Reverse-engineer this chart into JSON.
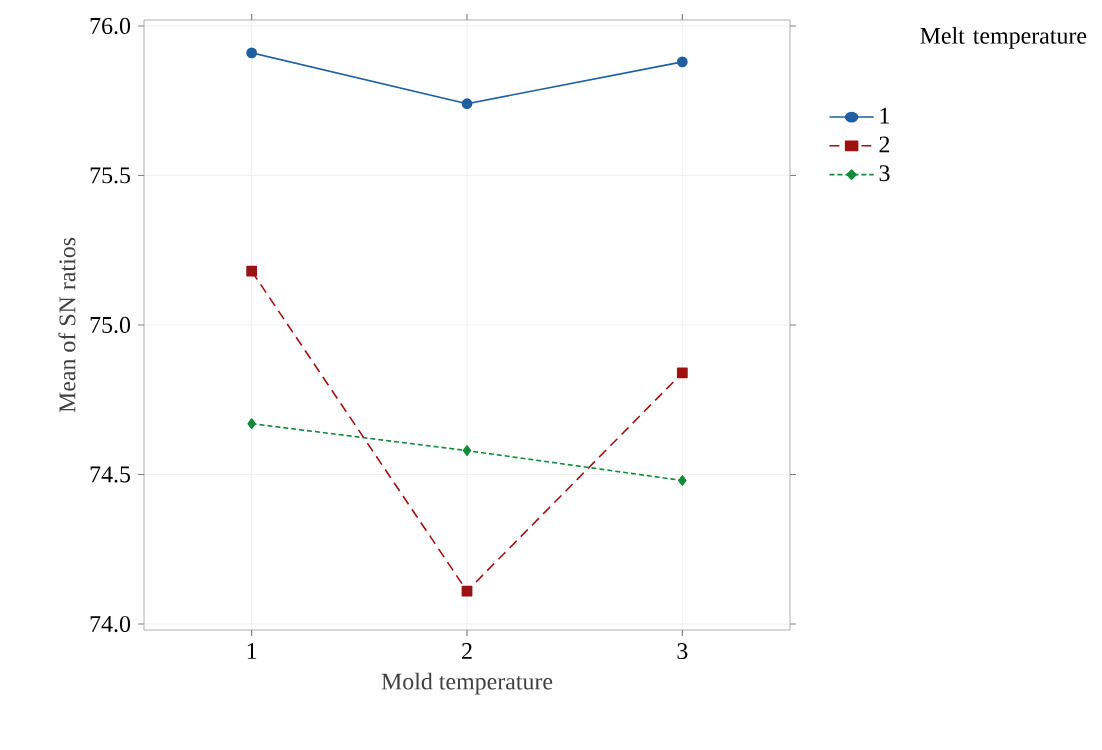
{
  "chart_data": {
    "type": "line",
    "xlabel": "Mold temperature",
    "ylabel": "Mean of SN ratios",
    "legend_title": "Melt temperature",
    "categories": [
      "1",
      "2",
      "3"
    ],
    "series": [
      {
        "name": "1",
        "color": "#1f5fa0",
        "marker": "circle",
        "line_style": "solid",
        "values": [
          75.91,
          75.74,
          75.88
        ]
      },
      {
        "name": "2",
        "color": "#a01010",
        "marker": "square",
        "line_style": "dashed",
        "values": [
          75.18,
          74.11,
          74.84
        ]
      },
      {
        "name": "3",
        "color": "#128a3a",
        "marker": "diamond",
        "line_style": "dotted",
        "values": [
          74.67,
          74.58,
          74.48
        ]
      }
    ],
    "ylim": [
      73.98,
      76.02
    ],
    "yticks": [
      {
        "value": 74.0,
        "label": "74.0"
      },
      {
        "value": 74.5,
        "label": "74.5"
      },
      {
        "value": 75.0,
        "label": "75.0"
      },
      {
        "value": 75.5,
        "label": "75.5"
      },
      {
        "value": 76.0,
        "label": "76.0"
      }
    ],
    "grid": true,
    "legend": "right"
  }
}
